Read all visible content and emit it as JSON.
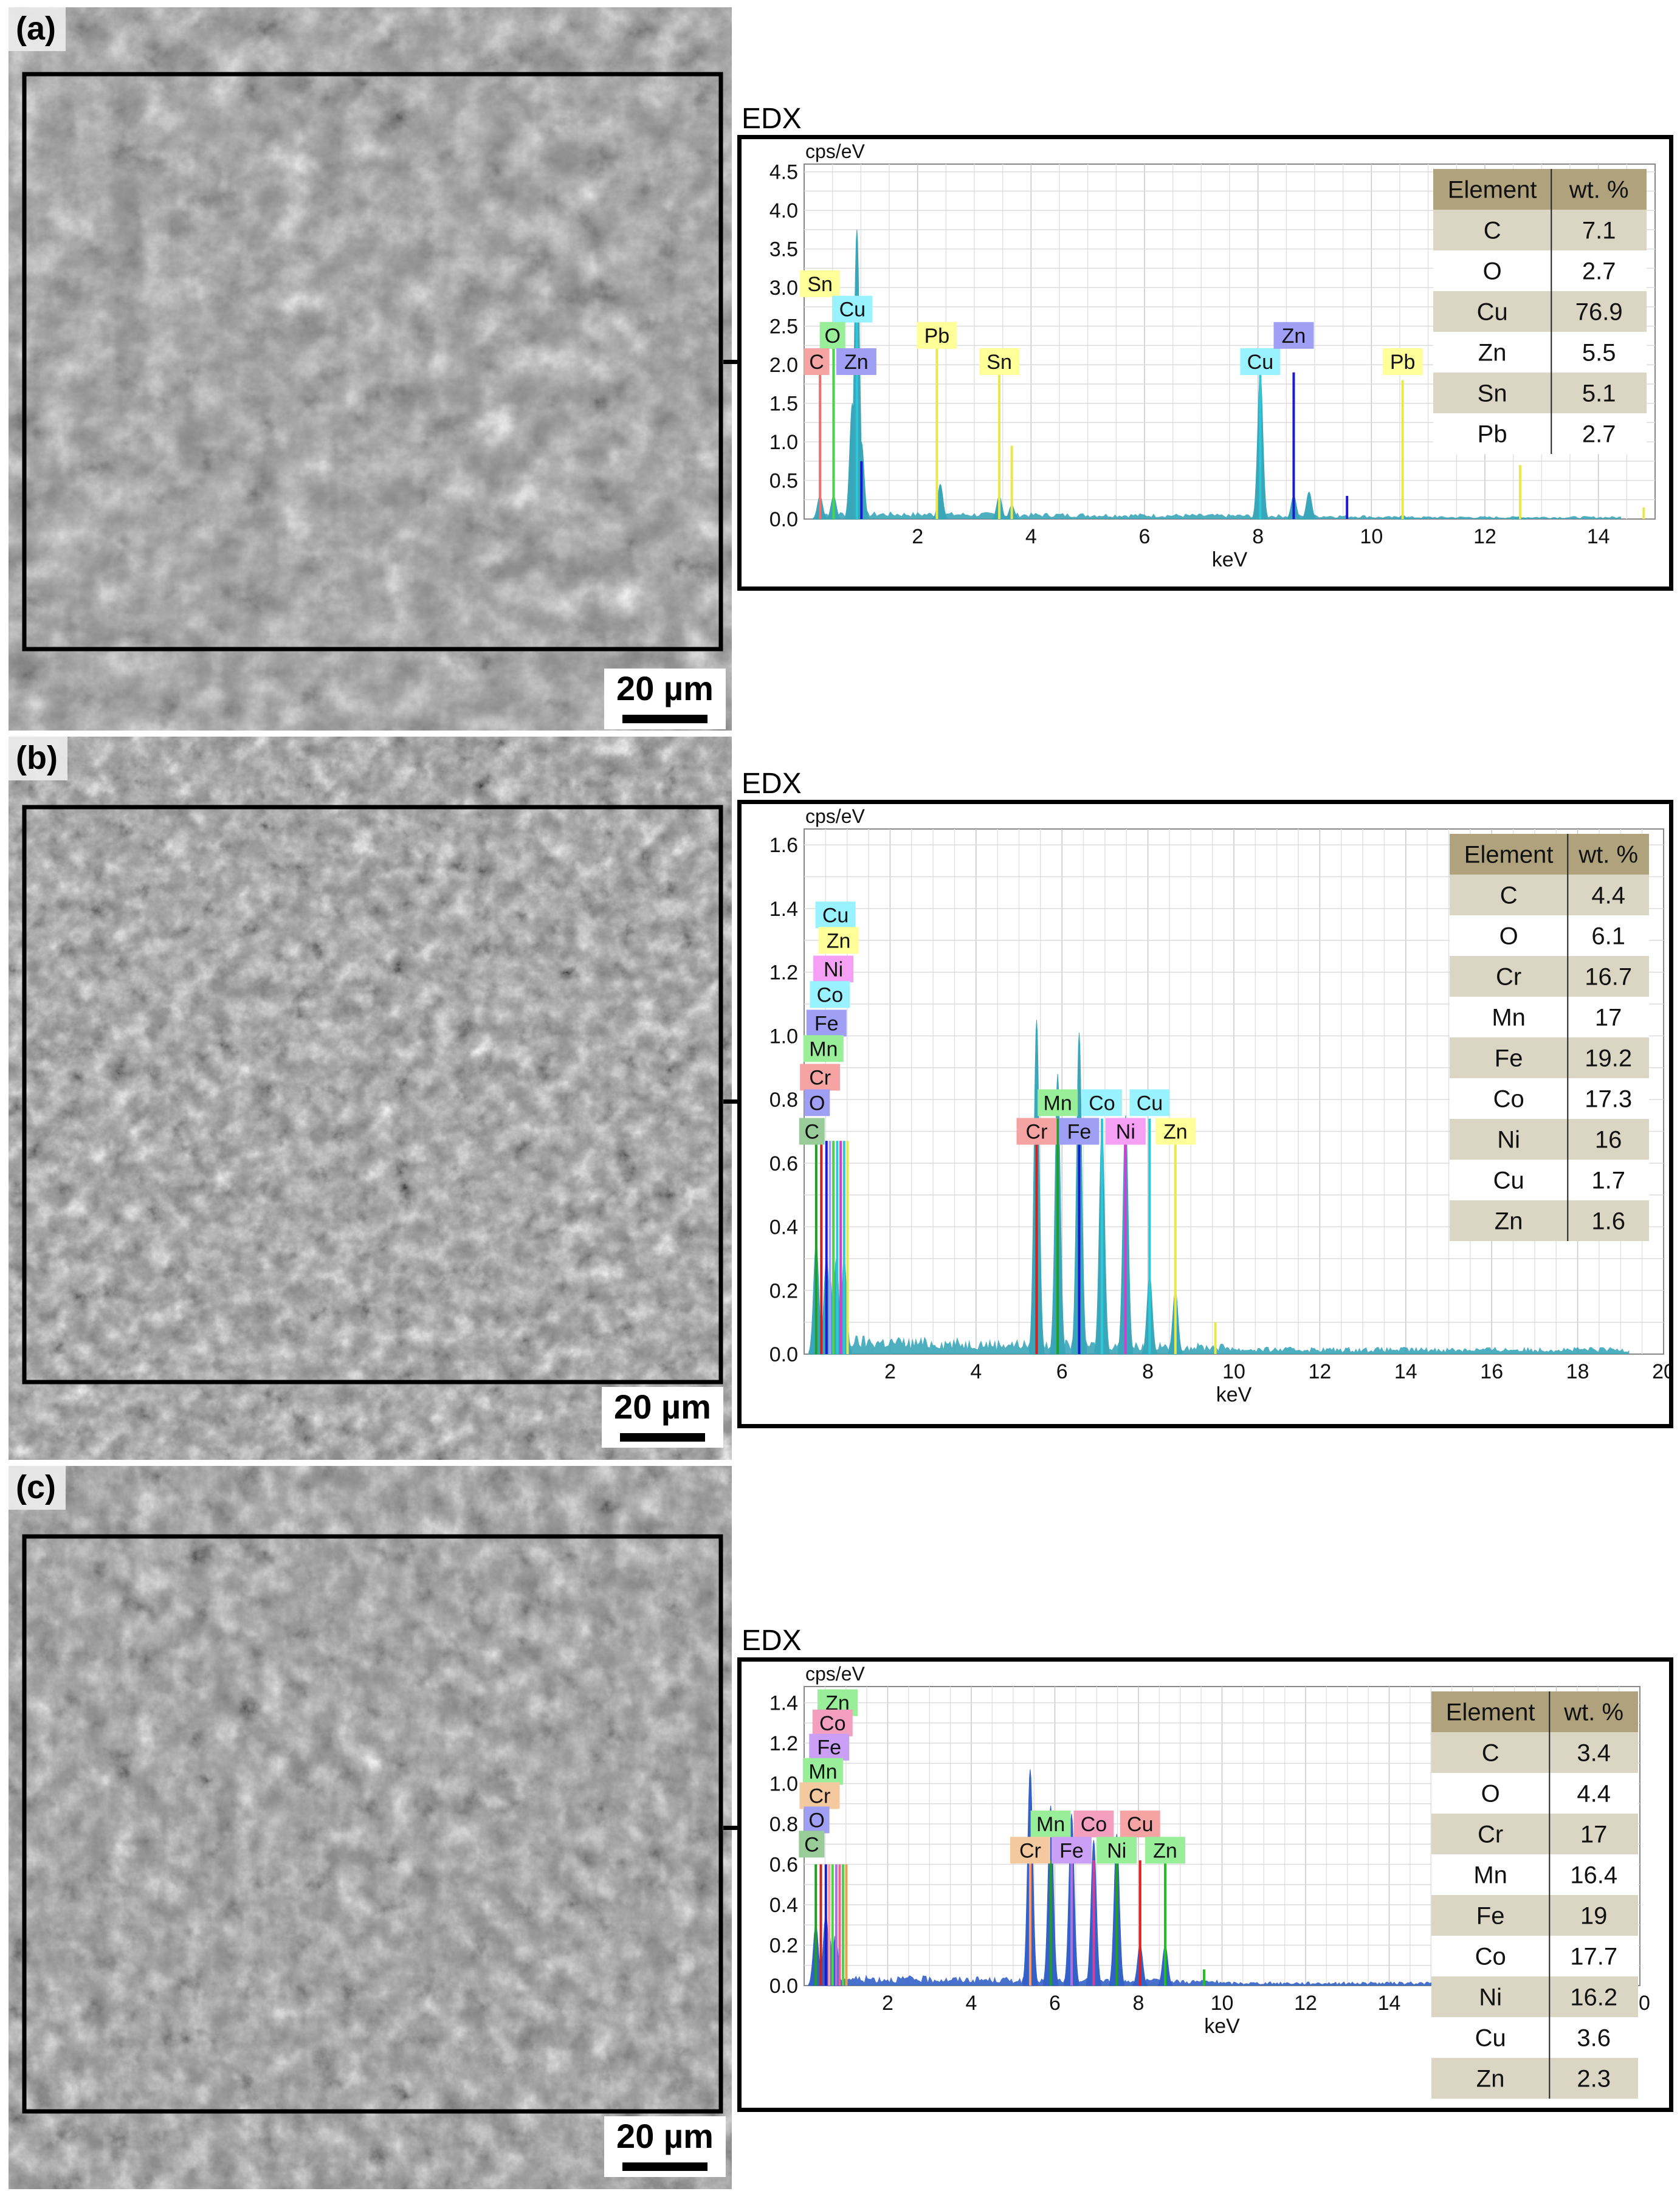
{
  "panels": [
    {
      "tag": "(a)",
      "scale_label": "20  µm",
      "edx_title": "EDX",
      "chart_data": {
        "type": "line",
        "ylabel": "cps/eV",
        "xlabel": "keV",
        "xlim": [
          0,
          15
        ],
        "ylim": [
          0,
          4.6
        ],
        "xticks": [
          2,
          4,
          6,
          8,
          10,
          12,
          14
        ],
        "yticks": [
          0.0,
          0.5,
          1.0,
          1.5,
          2.0,
          2.5,
          3.0,
          3.5,
          4.0,
          4.5
        ],
        "grid": true,
        "spectrum_color": "#3aa6b9",
        "peaks": [
          {
            "x": 0.28,
            "y": 0.3
          },
          {
            "x": 0.52,
            "y": 0.3
          },
          {
            "x": 0.85,
            "y": 1.5
          },
          {
            "x": 0.93,
            "y": 3.75
          },
          {
            "x": 1.01,
            "y": 1.0
          },
          {
            "x": 2.4,
            "y": 0.45
          },
          {
            "x": 3.44,
            "y": 0.3
          },
          {
            "x": 3.66,
            "y": 0.18
          },
          {
            "x": 8.04,
            "y": 1.9
          },
          {
            "x": 8.63,
            "y": 0.3
          },
          {
            "x": 8.9,
            "y": 0.35
          },
          {
            "x": 10.55,
            "y": 0.05
          },
          {
            "x": 12.6,
            "y": 0.03
          }
        ],
        "lines": [
          {
            "x": 0.28,
            "y": 2.0,
            "color": "#f26d6d"
          },
          {
            "x": 0.52,
            "y": 2.4,
            "color": "#4cd24c"
          },
          {
            "x": 0.93,
            "y": 2.6,
            "color": "#2ec7d8"
          },
          {
            "x": 1.01,
            "y": 0.75,
            "color": "#1a1ad0"
          },
          {
            "x": 3.44,
            "y": 2.0,
            "color": "#e8e84a"
          },
          {
            "x": 3.66,
            "y": 0.95,
            "color": "#e8e84a"
          },
          {
            "x": 2.34,
            "y": 2.4,
            "color": "#e8e84a"
          },
          {
            "x": 8.04,
            "y": 1.9,
            "color": "#2ec7d8"
          },
          {
            "x": 8.63,
            "y": 1.9,
            "color": "#1a1ad0"
          },
          {
            "x": 9.57,
            "y": 0.3,
            "color": "#1a1ad0"
          },
          {
            "x": 10.55,
            "y": 1.8,
            "color": "#e8e84a"
          },
          {
            "x": 12.62,
            "y": 0.7,
            "color": "#e8e84a"
          },
          {
            "x": 14.8,
            "y": 0.15,
            "color": "#e8e84a"
          }
        ],
        "labels": [
          {
            "text": "Sn",
            "x": 0.28,
            "y": 3.05,
            "color": "#ffff99"
          },
          {
            "text": "Cu",
            "x": 0.85,
            "y": 2.72,
            "color": "#99f2ff"
          },
          {
            "text": "O",
            "x": 0.5,
            "y": 2.38,
            "color": "#99ee99"
          },
          {
            "text": "C",
            "x": 0.22,
            "y": 2.04,
            "color": "#f5a3a3"
          },
          {
            "text": "Zn",
            "x": 0.92,
            "y": 2.04,
            "color": "#9f9ff5"
          },
          {
            "text": "Pb",
            "x": 2.34,
            "y": 2.38,
            "color": "#ffff99"
          },
          {
            "text": "Sn",
            "x": 3.44,
            "y": 2.04,
            "color": "#ffff99"
          },
          {
            "text": "Cu",
            "x": 8.04,
            "y": 2.04,
            "color": "#99f2ff"
          },
          {
            "text": "Zn",
            "x": 8.63,
            "y": 2.38,
            "color": "#9f9ff5"
          },
          {
            "text": "Pb",
            "x": 10.55,
            "y": 2.04,
            "color": "#ffff99"
          }
        ],
        "table": {
          "headers": [
            "Element",
            "wt. %"
          ],
          "rows": [
            [
              "C",
              "7.1"
            ],
            [
              "O",
              "2.7"
            ],
            [
              "Cu",
              "76.9"
            ],
            [
              "Zn",
              "5.5"
            ],
            [
              "Sn",
              "5.1"
            ],
            [
              "Pb",
              "2.7"
            ]
          ]
        }
      }
    },
    {
      "tag": "(b)",
      "scale_label": "20  µm",
      "edx_title": "EDX",
      "chart_data": {
        "type": "line",
        "ylabel": "cps/eV",
        "xlabel": "keV",
        "xlim": [
          0,
          20
        ],
        "ylim": [
          0,
          1.65
        ],
        "xticks": [
          2,
          4,
          6,
          8,
          10,
          12,
          14,
          16,
          18,
          20
        ],
        "yticks": [
          0.0,
          0.2,
          0.4,
          0.6,
          0.8,
          1.0,
          1.2,
          1.4,
          1.6
        ],
        "grid": true,
        "spectrum_color": "#3aa6b9",
        "peaks": [
          {
            "x": 0.28,
            "y": 0.35
          },
          {
            "x": 0.52,
            "y": 0.3
          },
          {
            "x": 0.6,
            "y": 0.25
          },
          {
            "x": 0.75,
            "y": 0.3
          },
          {
            "x": 0.93,
            "y": 0.3
          },
          {
            "x": 5.41,
            "y": 1.05
          },
          {
            "x": 5.9,
            "y": 0.88
          },
          {
            "x": 6.4,
            "y": 1.01
          },
          {
            "x": 6.93,
            "y": 0.72
          },
          {
            "x": 7.48,
            "y": 0.75
          },
          {
            "x": 8.04,
            "y": 0.25
          },
          {
            "x": 8.64,
            "y": 0.2
          }
        ],
        "lines": [
          {
            "x": 0.28,
            "y": 0.67,
            "color": "#20a020"
          },
          {
            "x": 0.4,
            "y": 0.67,
            "color": "#d02020"
          },
          {
            "x": 0.52,
            "y": 0.67,
            "color": "#1a1ad0"
          },
          {
            "x": 0.6,
            "y": 0.67,
            "color": "#a0a0ff"
          },
          {
            "x": 0.68,
            "y": 0.67,
            "color": "#4cd24c"
          },
          {
            "x": 0.77,
            "y": 0.67,
            "color": "#2ec7d8"
          },
          {
            "x": 0.85,
            "y": 0.67,
            "color": "#d040d0"
          },
          {
            "x": 0.93,
            "y": 0.67,
            "color": "#2ec7d8"
          },
          {
            "x": 1.01,
            "y": 0.67,
            "color": "#e8e84a"
          },
          {
            "x": 5.41,
            "y": 0.74,
            "color": "#d02020"
          },
          {
            "x": 5.9,
            "y": 0.74,
            "color": "#20a020"
          },
          {
            "x": 6.4,
            "y": 0.74,
            "color": "#1a1ad0"
          },
          {
            "x": 6.93,
            "y": 0.74,
            "color": "#2ec7d8"
          },
          {
            "x": 7.48,
            "y": 0.74,
            "color": "#d040d0"
          },
          {
            "x": 8.04,
            "y": 0.74,
            "color": "#2ec7d8"
          },
          {
            "x": 8.64,
            "y": 0.67,
            "color": "#e8e84a"
          },
          {
            "x": 9.57,
            "y": 0.1,
            "color": "#e8e84a"
          }
        ],
        "labels": [
          {
            "text": "Cu",
            "x": 0.73,
            "y": 1.38,
            "color": "#99f2ff"
          },
          {
            "text": "Zn",
            "x": 0.8,
            "y": 1.3,
            "color": "#ffff99"
          },
          {
            "text": "Ni",
            "x": 0.68,
            "y": 1.21,
            "color": "#f59ff5"
          },
          {
            "text": "Co",
            "x": 0.6,
            "y": 1.13,
            "color": "#99f2ff"
          },
          {
            "text": "Fe",
            "x": 0.52,
            "y": 1.04,
            "color": "#9f9ff5"
          },
          {
            "text": "Mn",
            "x": 0.45,
            "y": 0.96,
            "color": "#99ee99"
          },
          {
            "text": "Cr",
            "x": 0.37,
            "y": 0.87,
            "color": "#f5a3a3"
          },
          {
            "text": "O",
            "x": 0.3,
            "y": 0.79,
            "color": "#9f9ff5"
          },
          {
            "text": "C",
            "x": 0.18,
            "y": 0.7,
            "color": "#99cc99"
          },
          {
            "text": "Mn",
            "x": 5.9,
            "y": 0.79,
            "color": "#99ee99"
          },
          {
            "text": "Co",
            "x": 6.93,
            "y": 0.79,
            "color": "#99f2ff"
          },
          {
            "text": "Cu",
            "x": 8.04,
            "y": 0.79,
            "color": "#99f2ff"
          },
          {
            "text": "Cr",
            "x": 5.41,
            "y": 0.7,
            "color": "#f5a3a3"
          },
          {
            "text": "Fe",
            "x": 6.4,
            "y": 0.7,
            "color": "#9f9ff5"
          },
          {
            "text": "Ni",
            "x": 7.48,
            "y": 0.7,
            "color": "#f59ff5"
          },
          {
            "text": "Zn",
            "x": 8.64,
            "y": 0.7,
            "color": "#ffff99"
          }
        ],
        "table": {
          "headers": [
            "Element",
            "wt. %"
          ],
          "rows": [
            [
              "C",
              "4.4"
            ],
            [
              "O",
              "6.1"
            ],
            [
              "Cr",
              "16.7"
            ],
            [
              "Mn",
              "17"
            ],
            [
              "Fe",
              "19.2"
            ],
            [
              "Co",
              "17.3"
            ],
            [
              "Ni",
              "16"
            ],
            [
              "Cu",
              "1.7"
            ],
            [
              "Zn",
              "1.6"
            ]
          ]
        }
      }
    },
    {
      "tag": "(c)",
      "scale_label": "20  µm",
      "edx_title": "EDX",
      "chart_data": {
        "type": "line",
        "ylabel": "cps/eV",
        "xlabel": "keV",
        "xlim": [
          0,
          20
        ],
        "ylim": [
          0,
          1.48
        ],
        "xticks": [
          2,
          4,
          6,
          8,
          10,
          12,
          14
        ],
        "xtick_partial": "0",
        "yticks": [
          0.0,
          0.2,
          0.4,
          0.6,
          0.8,
          1.0,
          1.2,
          1.4
        ],
        "grid": true,
        "spectrum_color": "#3461c8",
        "peaks": [
          {
            "x": 0.28,
            "y": 0.3
          },
          {
            "x": 0.52,
            "y": 0.35
          },
          {
            "x": 0.6,
            "y": 0.25
          },
          {
            "x": 0.75,
            "y": 0.25
          },
          {
            "x": 5.41,
            "y": 1.07
          },
          {
            "x": 5.9,
            "y": 0.89
          },
          {
            "x": 6.4,
            "y": 0.85
          },
          {
            "x": 6.93,
            "y": 0.72
          },
          {
            "x": 7.48,
            "y": 0.75
          },
          {
            "x": 8.04,
            "y": 0.2
          },
          {
            "x": 8.64,
            "y": 0.2
          }
        ],
        "lines": [
          {
            "x": 0.28,
            "y": 0.6,
            "color": "#20a020"
          },
          {
            "x": 0.4,
            "y": 0.6,
            "color": "#d02020"
          },
          {
            "x": 0.52,
            "y": 0.6,
            "color": "#1a1ad0"
          },
          {
            "x": 0.6,
            "y": 0.6,
            "color": "#ff9999"
          },
          {
            "x": 0.68,
            "y": 0.6,
            "color": "#4cd24c"
          },
          {
            "x": 0.77,
            "y": 0.6,
            "color": "#b070e0"
          },
          {
            "x": 0.85,
            "y": 0.6,
            "color": "#f06090"
          },
          {
            "x": 0.93,
            "y": 0.6,
            "color": "#4cd24c"
          },
          {
            "x": 1.01,
            "y": 0.6,
            "color": "#e8a04a"
          },
          {
            "x": 5.41,
            "y": 0.62,
            "color": "#ff9966"
          },
          {
            "x": 5.9,
            "y": 0.62,
            "color": "#20a020"
          },
          {
            "x": 6.4,
            "y": 0.62,
            "color": "#b070e0"
          },
          {
            "x": 6.93,
            "y": 0.62,
            "color": "#d040a0"
          },
          {
            "x": 7.48,
            "y": 0.62,
            "color": "#20a020"
          },
          {
            "x": 8.04,
            "y": 0.62,
            "color": "#e02020"
          },
          {
            "x": 8.64,
            "y": 0.62,
            "color": "#20c020"
          },
          {
            "x": 9.57,
            "y": 0.08,
            "color": "#20c020"
          }
        ],
        "labels": [
          {
            "text": "Zn",
            "x": 0.8,
            "y": 1.4,
            "color": "#99ee99"
          },
          {
            "text": "Co",
            "x": 0.68,
            "y": 1.3,
            "color": "#f59fbf"
          },
          {
            "text": "Fe",
            "x": 0.6,
            "y": 1.18,
            "color": "#c9a0f5"
          },
          {
            "text": "Mn",
            "x": 0.45,
            "y": 1.06,
            "color": "#99ee99"
          },
          {
            "text": "Cr",
            "x": 0.37,
            "y": 0.94,
            "color": "#f5c99f"
          },
          {
            "text": "O",
            "x": 0.3,
            "y": 0.82,
            "color": "#9f9ff5"
          },
          {
            "text": "C",
            "x": 0.18,
            "y": 0.7,
            "color": "#99cc99"
          },
          {
            "text": "Mn",
            "x": 5.9,
            "y": 0.8,
            "color": "#99ee99"
          },
          {
            "text": "Co",
            "x": 6.93,
            "y": 0.8,
            "color": "#f59fbf"
          },
          {
            "text": "Cu",
            "x": 8.04,
            "y": 0.8,
            "color": "#f5a3a3"
          },
          {
            "text": "Cr",
            "x": 5.41,
            "y": 0.67,
            "color": "#f5c99f"
          },
          {
            "text": "Fe",
            "x": 6.4,
            "y": 0.67,
            "color": "#c9a0f5"
          },
          {
            "text": "Ni",
            "x": 7.48,
            "y": 0.67,
            "color": "#99ee99"
          },
          {
            "text": "Zn",
            "x": 8.64,
            "y": 0.67,
            "color": "#99ee99"
          }
        ],
        "table": {
          "headers": [
            "Element",
            "wt. %"
          ],
          "rows": [
            [
              "C",
              "3.4"
            ],
            [
              "O",
              "4.4"
            ],
            [
              "Cr",
              "17"
            ],
            [
              "Mn",
              "16.4"
            ],
            [
              "Fe",
              "19"
            ],
            [
              "Co",
              "17.7"
            ],
            [
              "Ni",
              "16.2"
            ],
            [
              "Cu",
              "3.6"
            ],
            [
              "Zn",
              "2.3"
            ]
          ]
        }
      }
    }
  ]
}
